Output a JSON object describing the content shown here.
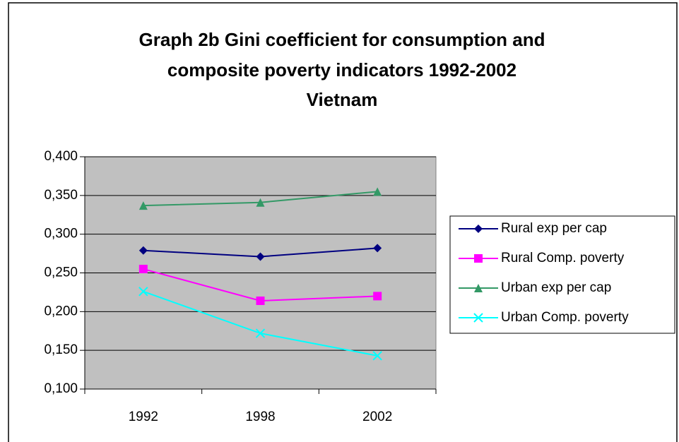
{
  "chart_data": {
    "type": "line",
    "title": [
      "Graph 2b Gini coefficient for consumption and",
      "composite poverty indicators 1992-2002",
      "Vietnam"
    ],
    "categories": [
      "1992",
      "1998",
      "2002"
    ],
    "series": [
      {
        "name": "Rural exp per cap",
        "color": "#000080",
        "marker": "diamond",
        "values": [
          0.279,
          0.271,
          0.282
        ]
      },
      {
        "name": "Rural Comp. poverty",
        "color": "#ff00ff",
        "marker": "square",
        "values": [
          0.255,
          0.214,
          0.22
        ]
      },
      {
        "name": "Urban exp per cap",
        "color": "#339966",
        "marker": "triangle",
        "values": [
          0.337,
          0.341,
          0.355
        ]
      },
      {
        "name": "Urban Comp. poverty",
        "color": "#00ffff",
        "marker": "x",
        "values": [
          0.226,
          0.172,
          0.143
        ]
      }
    ],
    "ylim": [
      0.1,
      0.4
    ],
    "yticks": [
      {
        "value": 0.1,
        "label": "0,100"
      },
      {
        "value": 0.15,
        "label": "0,150"
      },
      {
        "value": 0.2,
        "label": "0,200"
      },
      {
        "value": 0.25,
        "label": "0,250"
      },
      {
        "value": 0.3,
        "label": "0,300"
      },
      {
        "value": 0.35,
        "label": "0,350"
      },
      {
        "value": 0.4,
        "label": "0,400"
      }
    ],
    "grid": true,
    "legend": "right",
    "plot_background": "#c0c0c0"
  }
}
